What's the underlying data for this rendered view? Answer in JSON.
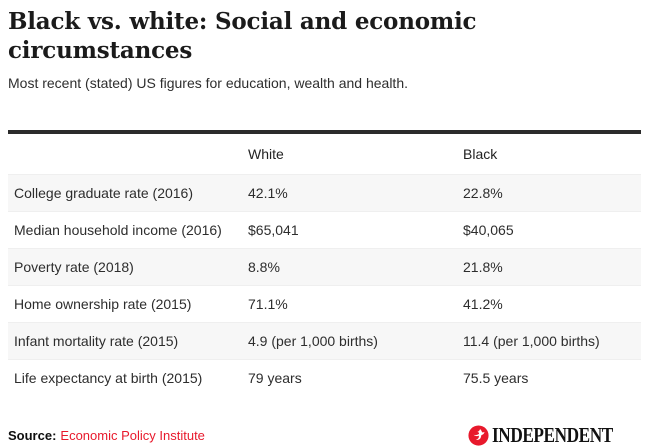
{
  "colors": {
    "accent_red": "#e8192c",
    "top_rule": "#2b2b2b",
    "row_stripe": "#f7f7f7",
    "title_text": "#1b1b1b"
  },
  "footer": {
    "source_label": "Source:",
    "source_link": "Economic Policy Institute",
    "brand": "INDEPENDENT",
    "eagle_icon": "independent-eagle"
  },
  "chart_data": {
    "type": "table",
    "title": "Black vs. white: Social and economic circumstances",
    "subtitle": "Most recent (stated) US figures for education, wealth and health.",
    "columns": [
      "White",
      "Black"
    ],
    "rows": [
      {
        "label": "College graduate rate (2016)",
        "white": "42.1%",
        "black": "22.8%"
      },
      {
        "label": "Median household income (2016)",
        "white": "$65,041",
        "black": "$40,065"
      },
      {
        "label": "Poverty rate (2018)",
        "white": "8.8%",
        "black": "21.8%"
      },
      {
        "label": "Home ownership rate (2015)",
        "white": "71.1%",
        "black": "41.2%"
      },
      {
        "label": "Infant mortality rate (2015)",
        "white": "4.9 (per 1,000 births)",
        "black": "11.4 (per 1,000 births)"
      },
      {
        "label": "Life expectancy at birth (2015)",
        "white": "79 years",
        "black": "75.5 years"
      }
    ],
    "source": "Economic Policy Institute",
    "layout": {
      "grid": "off",
      "stripe_rows": "odd",
      "header_rule": "thick-top"
    }
  }
}
